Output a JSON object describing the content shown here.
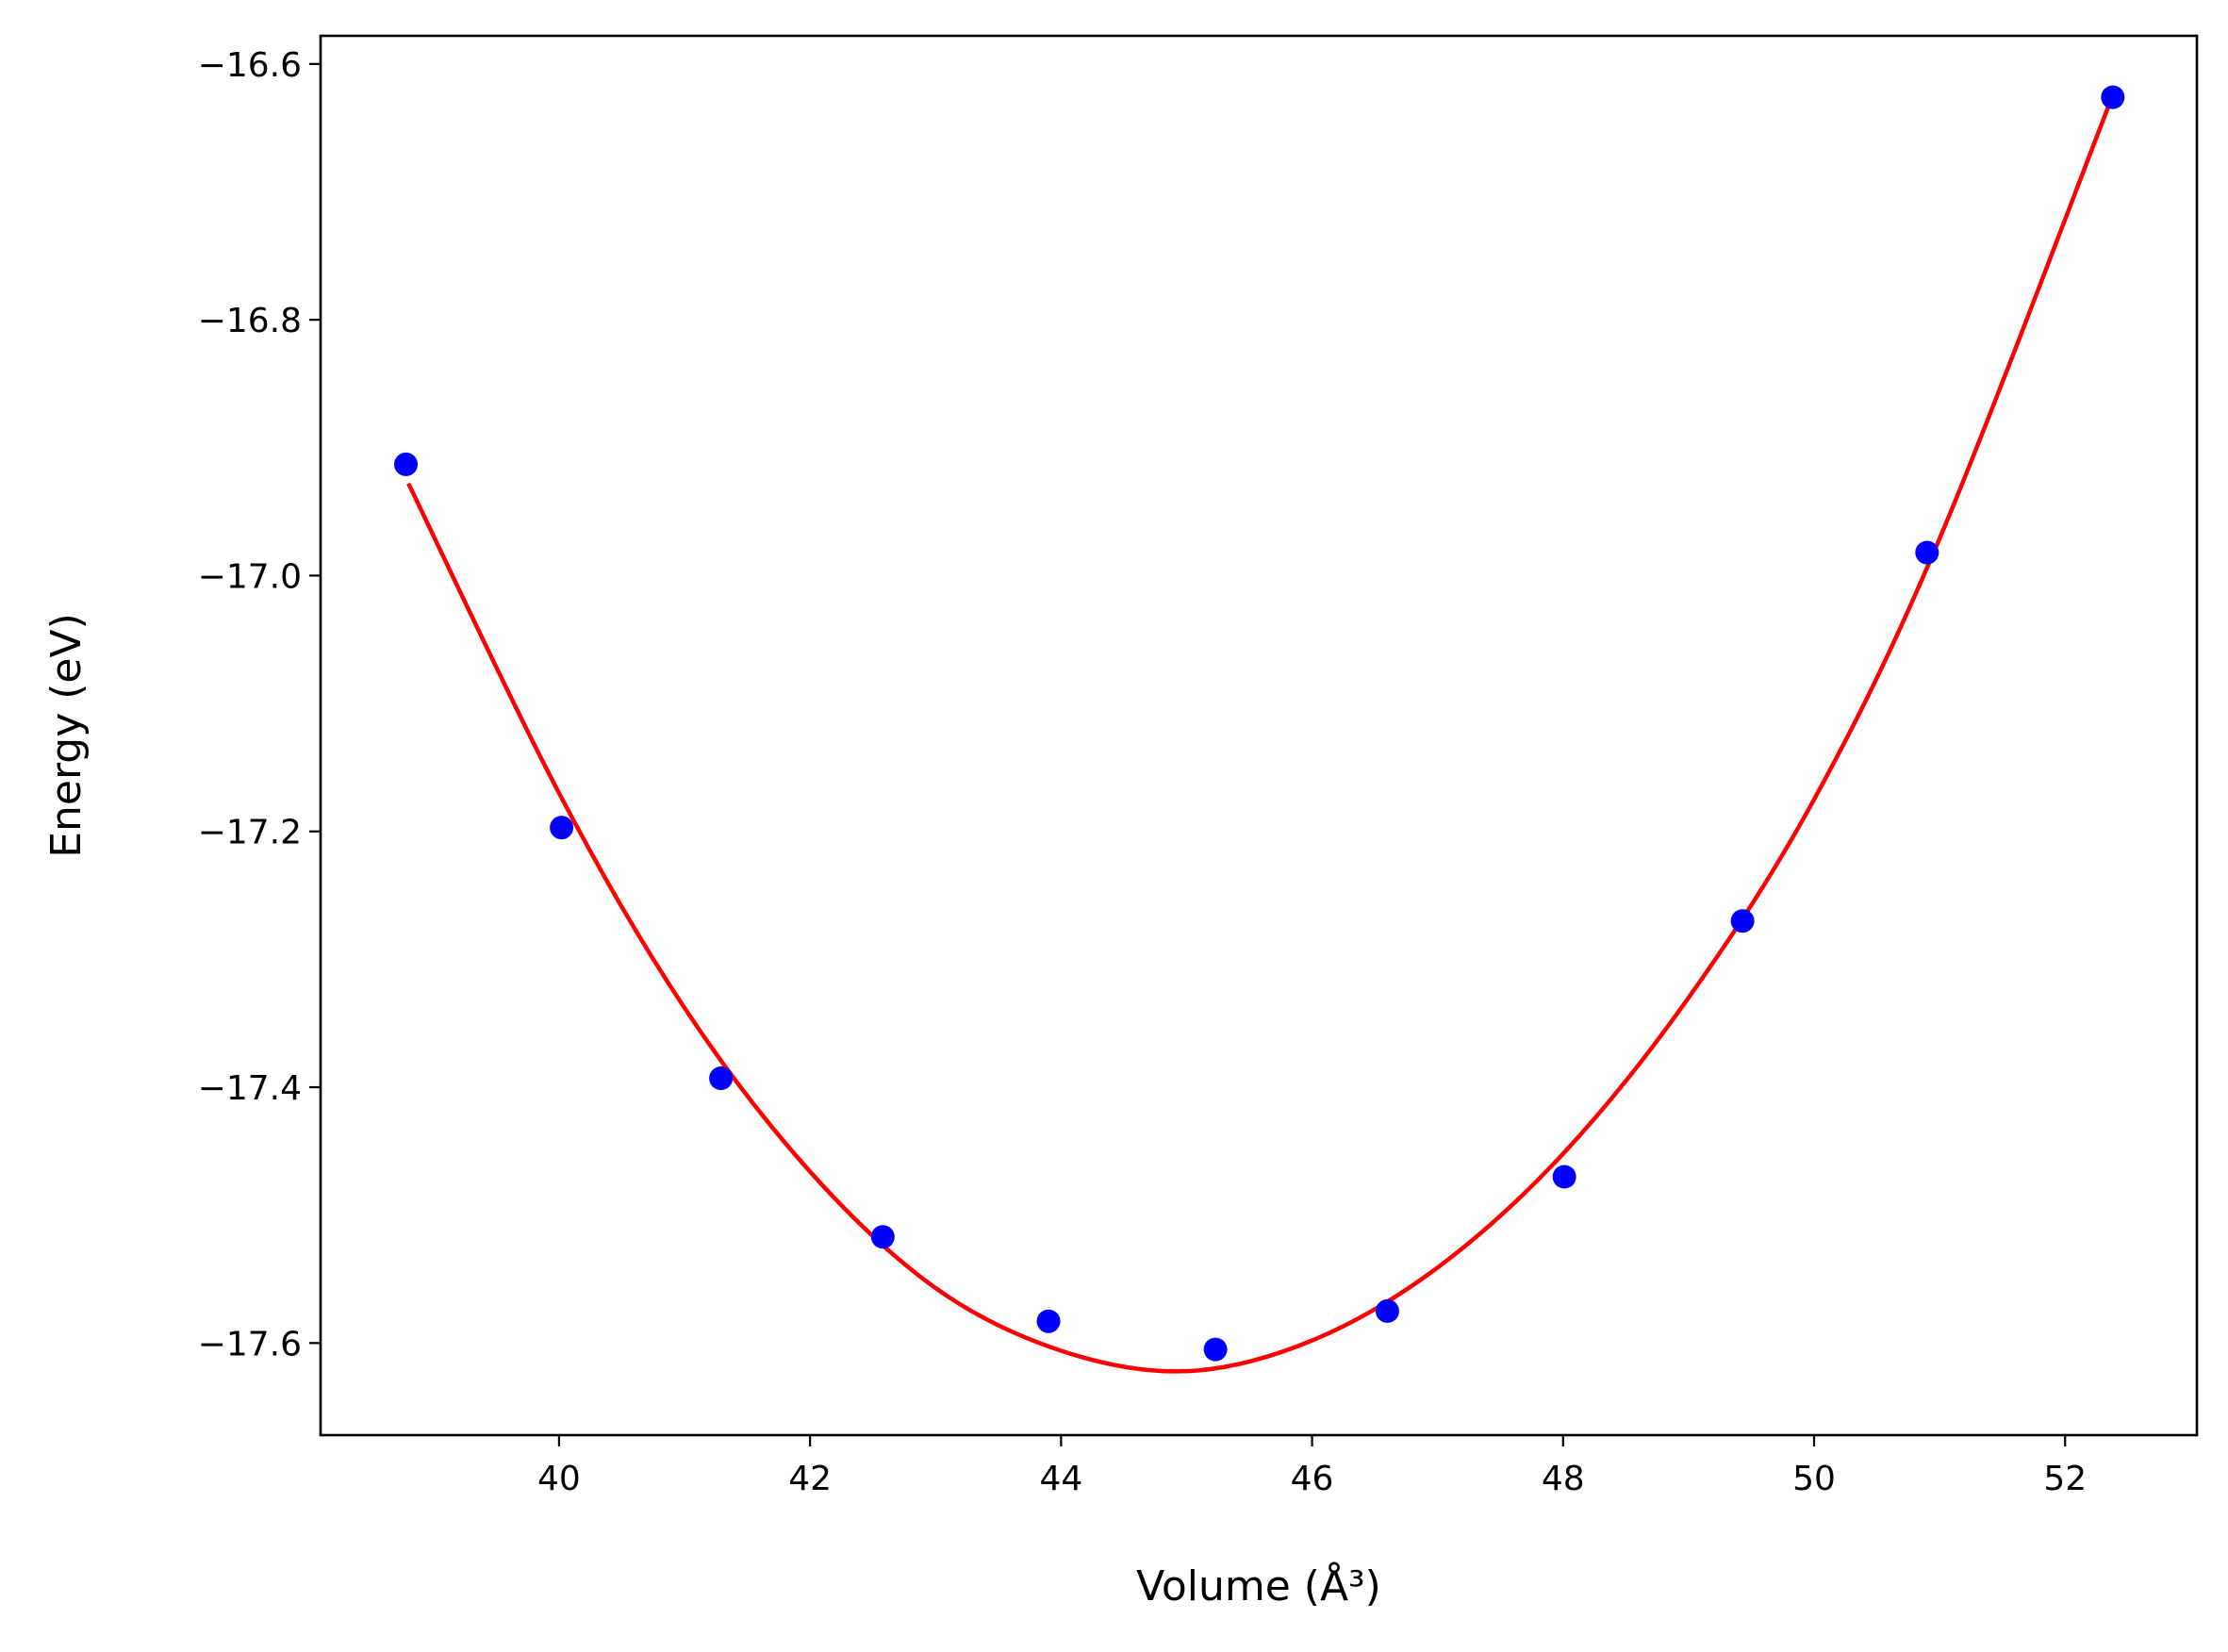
{
  "chart_data": {
    "type": "scatter",
    "xlabel": "Volume (Å³)",
    "ylabel": "Energy (eV)",
    "xlim": [
      38.1,
      53.05
    ],
    "ylim": [
      -17.672,
      -16.578
    ],
    "x_ticks": [
      40,
      42,
      44,
      46,
      48,
      50,
      52
    ],
    "x_tick_labels": [
      "40",
      "42",
      "44",
      "46",
      "48",
      "50",
      "52"
    ],
    "y_ticks": [
      -17.6,
      -17.4,
      -17.2,
      -17.0,
      -16.8,
      -16.6
    ],
    "y_tick_labels": [
      "−17.6",
      "−17.4",
      "−17.2",
      "−17.0",
      "−16.8",
      "−16.6"
    ],
    "grid": false,
    "series": [
      {
        "kind": "scatter",
        "color": "#0000ff",
        "x": [
          38.78,
          40.02,
          41.29,
          42.58,
          43.9,
          45.23,
          46.6,
          48.01,
          49.43,
          50.9,
          52.38
        ],
        "y": [
          -16.913,
          -17.197,
          -17.393,
          -17.517,
          -17.583,
          -17.605,
          -17.575,
          -17.47,
          -17.27,
          -16.982,
          -16.626
        ]
      },
      {
        "kind": "line",
        "color": "#ff0000",
        "x": [
          38.8,
          40,
          41,
          42,
          43,
          44,
          45,
          46,
          47,
          48,
          49,
          50,
          51,
          52.35
        ],
        "y": [
          -16.928,
          -17.17,
          -17.338,
          -17.466,
          -17.557,
          -17.606,
          -17.622,
          -17.598,
          -17.541,
          -17.452,
          -17.33,
          -17.175,
          -16.971,
          -16.632
        ]
      }
    ]
  }
}
